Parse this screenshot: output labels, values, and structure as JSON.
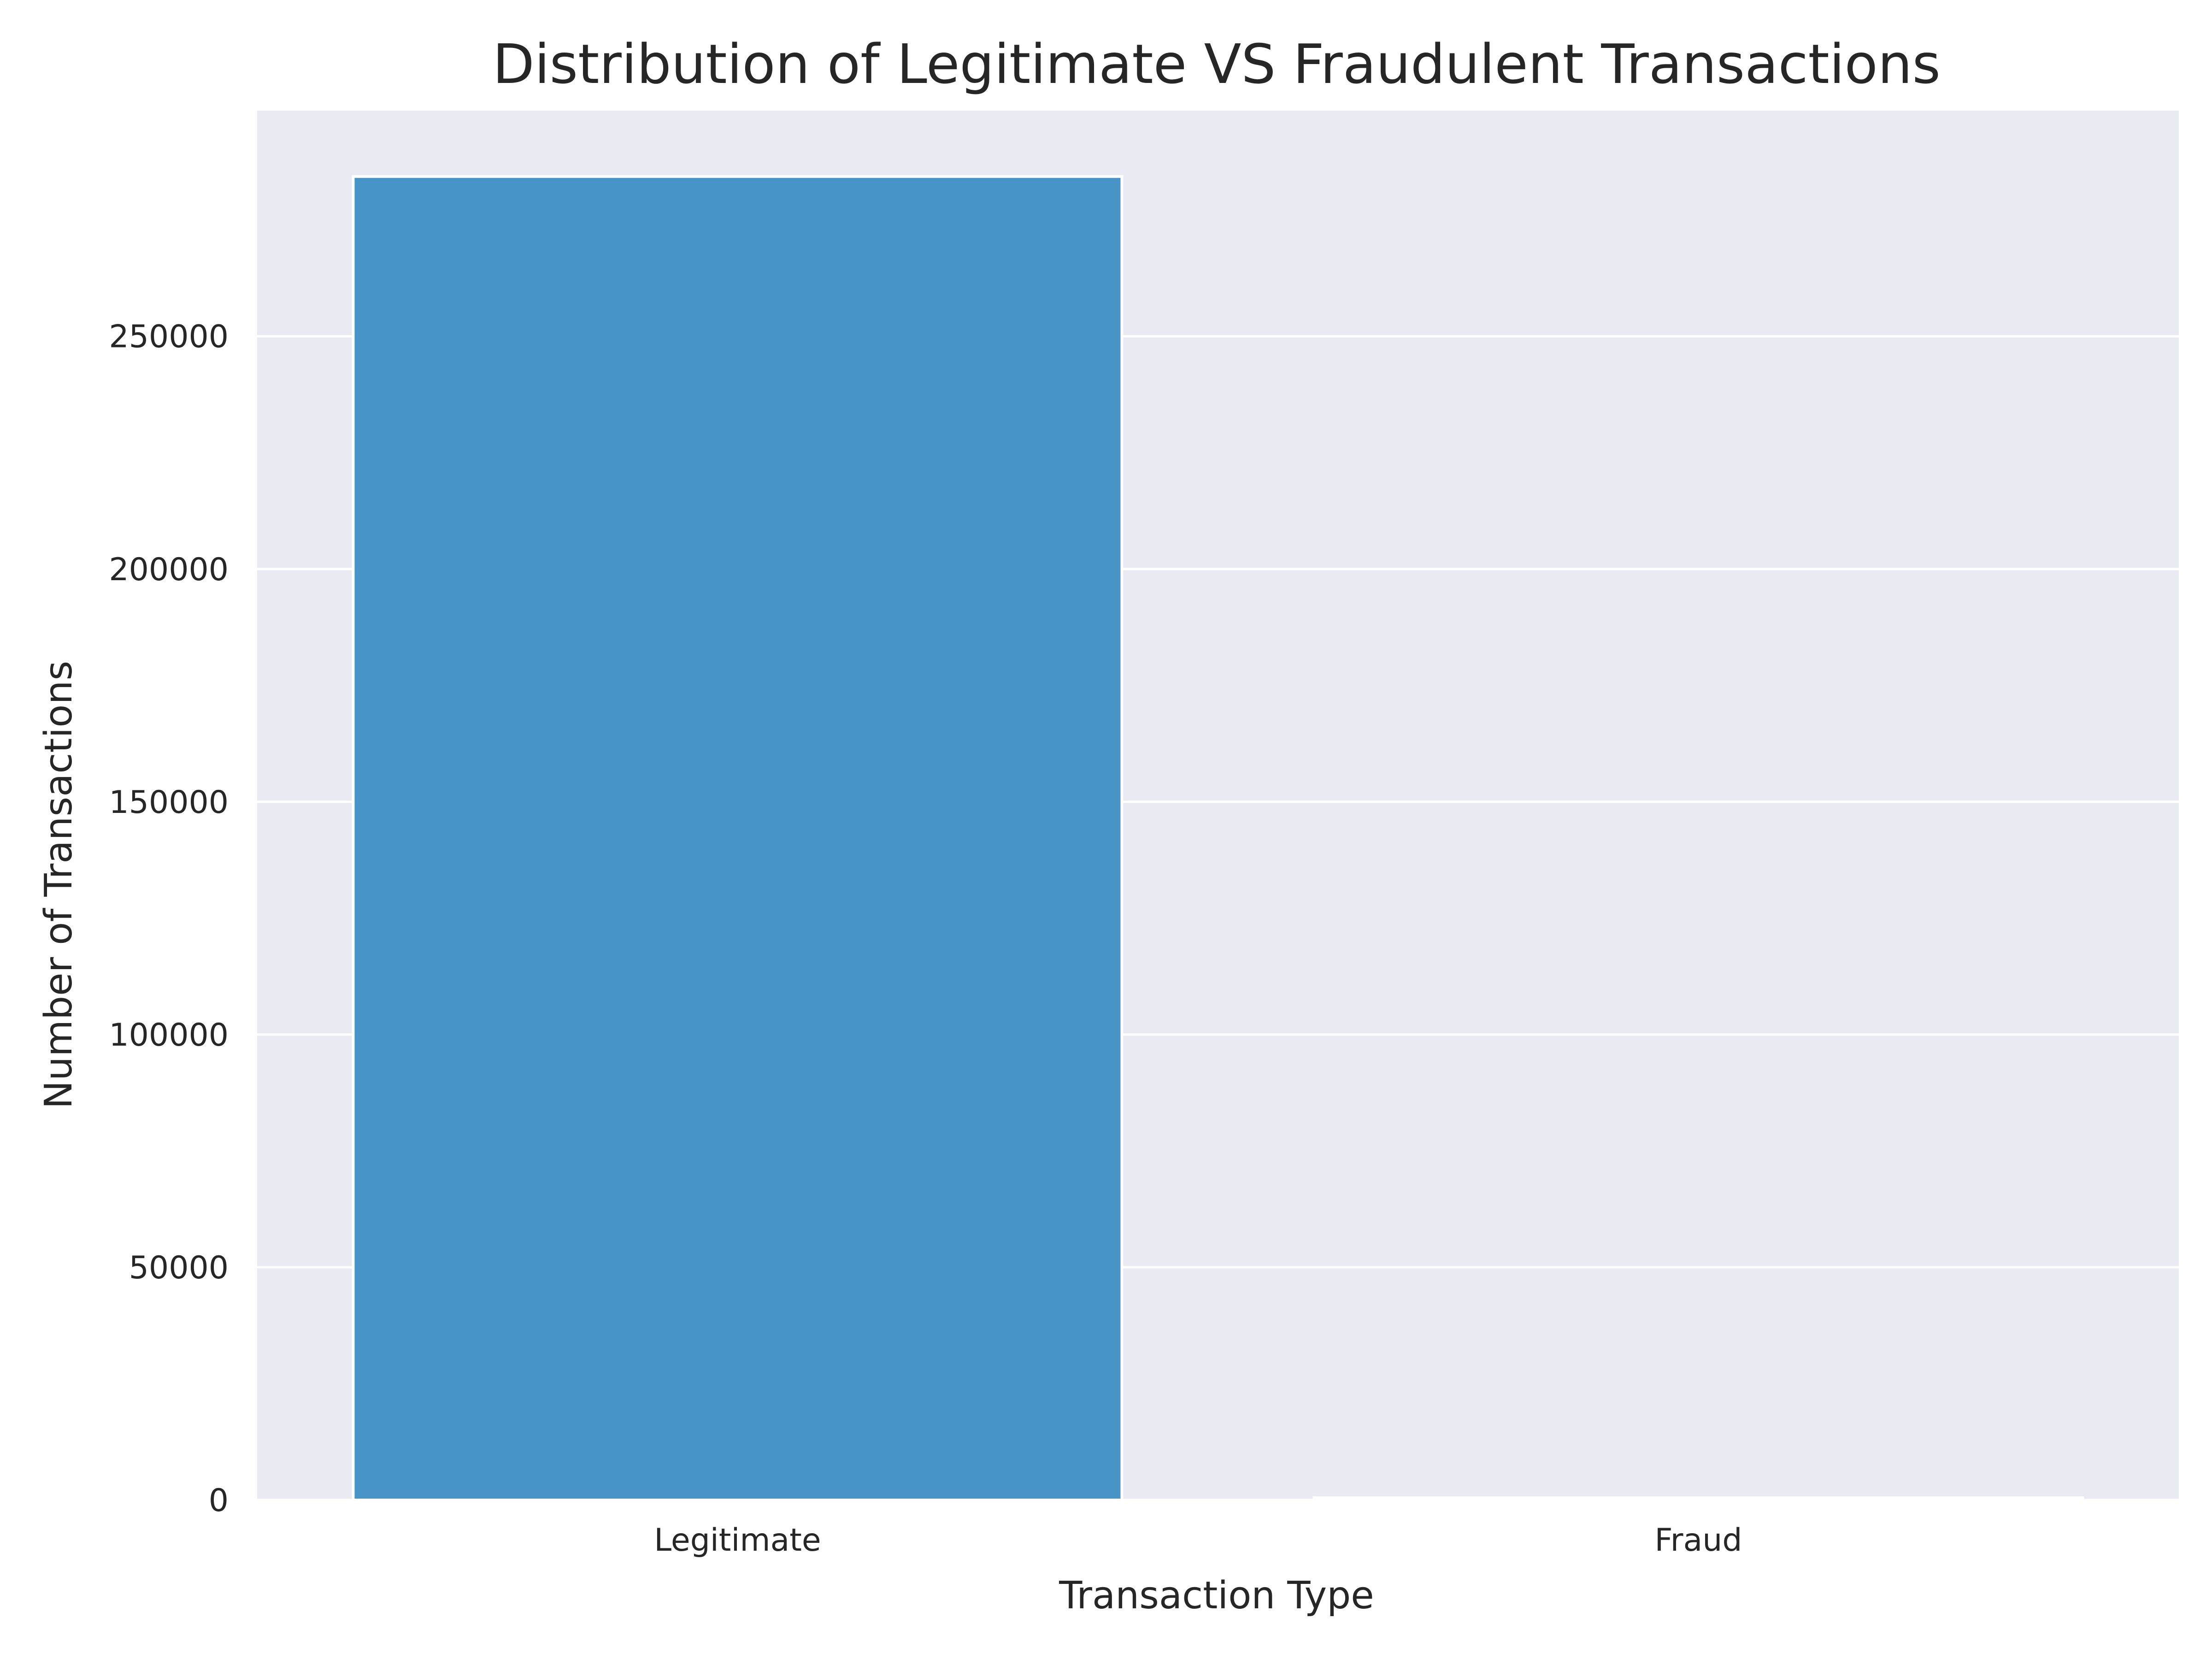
{
  "chart_data": {
    "type": "bar",
    "title": "Distribution of Legitimate VS Fraudulent Transactions",
    "xlabel": "Transaction Type",
    "ylabel": "Number of Transactions",
    "categories": [
      "Legitimate",
      "Fraud"
    ],
    "values": [
      284315,
      492
    ],
    "ylim": [
      0,
      298480
    ],
    "yticks": [
      0,
      50000,
      100000,
      150000,
      200000,
      250000
    ],
    "ytick_labels": [
      "0",
      "50000",
      "100000",
      "150000",
      "200000",
      "250000"
    ],
    "grid": true,
    "legend": "none",
    "colors": {
      "bar": "#4994c6",
      "plot_background": "#eaeaf2",
      "grid": "#ffffff",
      "edge": "#ffffff"
    }
  }
}
